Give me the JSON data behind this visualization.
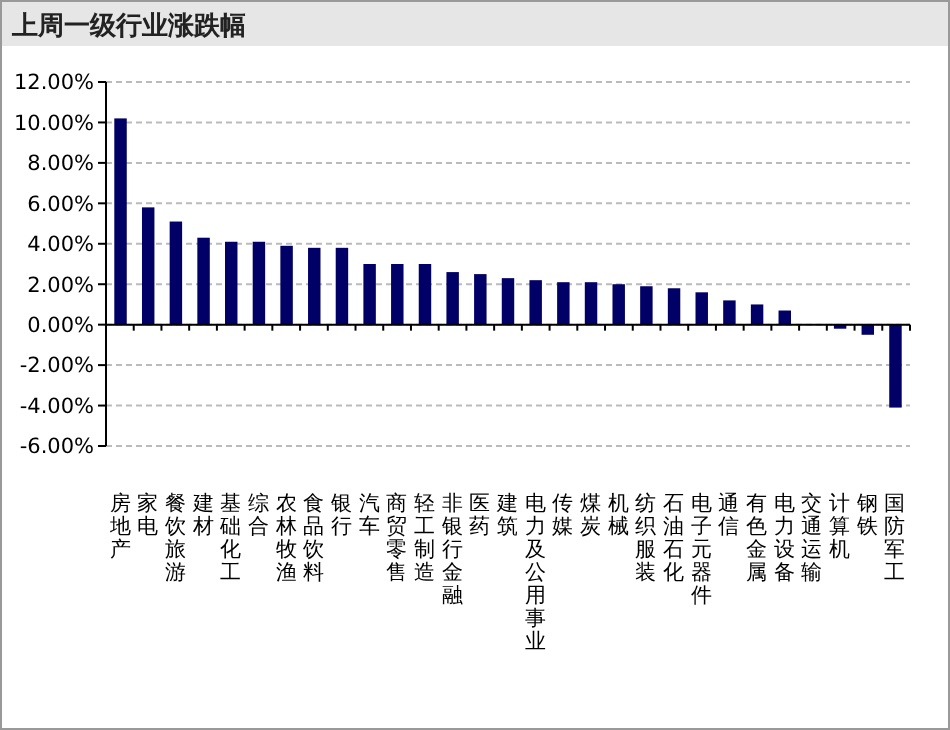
{
  "chart_data": {
    "type": "bar",
    "title": "上周一级行业涨跌幅",
    "categories": [
      "房地产",
      "家电",
      "餐饮旅游",
      "建材",
      "基础化工",
      "综合",
      "农林牧渔",
      "食品饮料",
      "银行",
      "汽车",
      "商贸零售",
      "轻工制造",
      "非银行金融",
      "医药",
      "建筑",
      "电力及公用事业",
      "传媒",
      "煤炭",
      "机械",
      "纺织服装",
      "石油石化",
      "电子元器件",
      "通信",
      "有色金属",
      "电力设备",
      "交通运输",
      "计算机",
      "钢铁",
      "国防军工"
    ],
    "values": [
      10.2,
      5.8,
      5.1,
      4.3,
      4.1,
      4.1,
      3.9,
      3.8,
      3.8,
      3.0,
      3.0,
      3.0,
      2.6,
      2.5,
      2.3,
      2.2,
      2.1,
      2.1,
      2.0,
      1.9,
      1.8,
      1.6,
      1.2,
      1.0,
      0.7,
      0.0,
      -0.2,
      -0.5,
      -4.1
    ],
    "color": "#000066",
    "ylim": [
      -6,
      12
    ],
    "yticks": [
      {
        "value": -6,
        "label": "-6.00%"
      },
      {
        "value": -4,
        "label": "-4.00%"
      },
      {
        "value": -2,
        "label": "-2.00%"
      },
      {
        "value": 0,
        "label": "0.00%"
      },
      {
        "value": 2,
        "label": "2.00%"
      },
      {
        "value": 4,
        "label": "4.00%"
      },
      {
        "value": 6,
        "label": "6.00%"
      },
      {
        "value": 8,
        "label": "8.00%"
      },
      {
        "value": 10,
        "label": "10.00%"
      },
      {
        "value": 12,
        "label": "12.00%"
      }
    ],
    "grid": "y"
  }
}
